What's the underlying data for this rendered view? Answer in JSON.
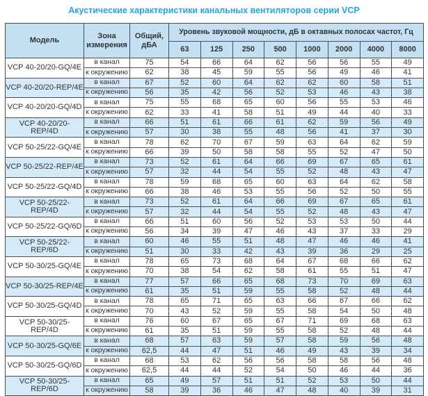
{
  "title": "Акустические характеристики канальных вентиляторов  серии VCP",
  "colors": {
    "title_text": "#2aa2db",
    "header_bg": "#c3e1f3",
    "highlight_row_bg": "#d4eaf8",
    "border": "#4d4d4d",
    "text": "#333333"
  },
  "table": {
    "headers": {
      "model": "Модель",
      "zone": "Зона измерения",
      "total": "Общий, дБА",
      "spl_group": "Уровень звуковой мощности, дБ в октавных полосах частот, Гц"
    },
    "frequencies": [
      "63",
      "125",
      "250",
      "500",
      "1000",
      "2000",
      "4000",
      "8000"
    ],
    "zone_labels": [
      "в канал",
      "к окружению"
    ],
    "models": [
      {
        "name": "VCP 40-20/20-GQ/4E",
        "highlight": false,
        "rows": [
          {
            "zone": "в канал",
            "total": "75",
            "levels": [
              "54",
              "66",
              "64",
              "62",
              "56",
              "56",
              "55",
              "49"
            ]
          },
          {
            "zone": "к окружению",
            "total": "62",
            "levels": [
              "38",
              "45",
              "59",
              "55",
              "56",
              "49",
              "46",
              "41"
            ]
          }
        ]
      },
      {
        "name": "VCP 40-20/20-REP/4E",
        "highlight": true,
        "rows": [
          {
            "zone": "в канал",
            "total": "67",
            "levels": [
              "52",
              "60",
              "64",
              "62",
              "62",
              "60",
              "58",
              "51"
            ]
          },
          {
            "zone": "к окружению",
            "total": "56",
            "levels": [
              "35",
              "42",
              "56",
              "52",
              "53",
              "46",
              "43",
              "38"
            ]
          }
        ]
      },
      {
        "name": "VCP 40-20/20-GQ/4D",
        "highlight": false,
        "rows": [
          {
            "zone": "в канал",
            "total": "75",
            "levels": [
              "55",
              "68",
              "65",
              "60",
              "56",
              "55",
              "53",
              "46"
            ]
          },
          {
            "zone": "к окружению",
            "total": "62",
            "levels": [
              "33",
              "41",
              "58",
              "51",
              "49",
              "44",
              "40",
              "33"
            ]
          }
        ]
      },
      {
        "name": "VCP 40-20/20-REP/4D",
        "highlight": true,
        "rows": [
          {
            "zone": "в канал",
            "total": "66",
            "levels": [
              "51",
              "61",
              "66",
              "61",
              "62",
              "59",
              "56",
              "49"
            ]
          },
          {
            "zone": "к окружению",
            "total": "57",
            "levels": [
              "30",
              "38",
              "55",
              "48",
              "56",
              "41",
              "37",
              "30"
            ]
          }
        ]
      },
      {
        "name": "VCP 50-25/22-GQ/4E",
        "highlight": false,
        "rows": [
          {
            "zone": "в канал",
            "total": "78",
            "levels": [
              "62",
              "70",
              "67",
              "59",
              "63",
              "64",
              "62",
              "59"
            ]
          },
          {
            "zone": "к окружению",
            "total": "66",
            "levels": [
              "39",
              "50",
              "58",
              "58",
              "55",
              "52",
              "47",
              "50"
            ]
          }
        ]
      },
      {
        "name": "VCP 50-25/22-REP/4E",
        "highlight": true,
        "rows": [
          {
            "zone": "в канал",
            "total": "73",
            "levels": [
              "52",
              "61",
              "64",
              "66",
              "69",
              "67",
              "65",
              "61"
            ]
          },
          {
            "zone": "к окружению",
            "total": "57",
            "levels": [
              "32",
              "44",
              "54",
              "55",
              "52",
              "48",
              "43",
              "47"
            ]
          }
        ]
      },
      {
        "name": "VCP 50-25/22-GQ/4D",
        "highlight": false,
        "rows": [
          {
            "zone": "в канал",
            "total": "78",
            "levels": [
              "59",
              "68",
              "65",
              "60",
              "63",
              "64",
              "62",
              "58"
            ]
          },
          {
            "zone": "к окружению",
            "total": "66",
            "levels": [
              "38",
              "46",
              "53",
              "55",
              "56",
              "52",
              "50",
              "55"
            ]
          }
        ]
      },
      {
        "name": "VCP 50-25/22-REP/4D",
        "highlight": true,
        "rows": [
          {
            "zone": "в канал",
            "total": "73",
            "levels": [
              "52",
              "61",
              "64",
              "66",
              "69",
              "67",
              "65",
              "61"
            ]
          },
          {
            "zone": "к окружению",
            "total": "57",
            "levels": [
              "32",
              "44",
              "54",
              "55",
              "52",
              "48",
              "43",
              "47"
            ]
          }
        ]
      },
      {
        "name": "VCP 50-25/22-GQ/6D",
        "highlight": false,
        "rows": [
          {
            "zone": "в канал",
            "total": "66",
            "levels": [
              "51",
              "60",
              "56",
              "52",
              "53",
              "53",
              "50",
              "44"
            ]
          },
          {
            "zone": "к окружению",
            "total": "56",
            "levels": [
              "34",
              "39",
              "47",
              "46",
              "43",
              "37",
              "33",
              "29"
            ]
          }
        ]
      },
      {
        "name": "VCP 50-25/22-REP/6D",
        "highlight": true,
        "rows": [
          {
            "zone": "в канал",
            "total": "60",
            "levels": [
              "46",
              "55",
              "51",
              "48",
              "47",
              "46",
              "46",
              "41"
            ]
          },
          {
            "zone": "к окружению",
            "total": "51",
            "levels": [
              "30",
              "33",
              "42",
              "43",
              "39",
              "36",
              "29",
              "25"
            ]
          }
        ]
      },
      {
        "name": "VCP 50-30/25-GQ/4E",
        "highlight": false,
        "rows": [
          {
            "zone": "в канал",
            "total": "78",
            "levels": [
              "65",
              "73",
              "68",
              "64",
              "67",
              "68",
              "66",
              "62"
            ]
          },
          {
            "zone": "к окружению",
            "total": "70",
            "levels": [
              "38",
              "54",
              "62",
              "58",
              "61",
              "55",
              "51",
              "47"
            ]
          }
        ]
      },
      {
        "name": "VCP 50-30/25-REP/4E",
        "highlight": true,
        "rows": [
          {
            "zone": "в канал",
            "total": "77",
            "levels": [
              "57",
              "66",
              "65",
              "68",
              "73",
              "70",
              "69",
              "63"
            ]
          },
          {
            "zone": "к окружению",
            "total": "61",
            "levels": [
              "35",
              "51",
              "59",
              "55",
              "58",
              "52",
              "48",
              "44"
            ]
          }
        ]
      },
      {
        "name": "VCP 50-30/25-GQ/4D",
        "highlight": false,
        "rows": [
          {
            "zone": "в канал",
            "total": "78",
            "levels": [
              "65",
              "71",
              "65",
              "63",
              "66",
              "67",
              "66",
              "62"
            ]
          },
          {
            "zone": "к окружению",
            "total": "70",
            "levels": [
              "43",
              "52",
              "59",
              "55",
              "58",
              "54",
              "50",
              "48"
            ]
          }
        ]
      },
      {
        "name": "VCP 50-30/25-REP/4D",
        "highlight": false,
        "rows": [
          {
            "zone": "в канал",
            "total": "76",
            "levels": [
              "60",
              "67",
              "65",
              "67",
              "71",
              "69",
              "68",
              "63"
            ]
          },
          {
            "zone": "к окружению",
            "total": "61",
            "levels": [
              "35",
              "51",
              "59",
              "55",
              "58",
              "52",
              "48",
              "44"
            ]
          }
        ]
      },
      {
        "name": "VCP 50-30/25-GQ/6E",
        "highlight": true,
        "rows": [
          {
            "zone": "в канал",
            "total": "68",
            "levels": [
              "57",
              "63",
              "59",
              "57",
              "58",
              "59",
              "56",
              "48"
            ]
          },
          {
            "zone": "к окружению",
            "total": "62,5",
            "levels": [
              "44",
              "47",
              "51",
              "46",
              "49",
              "43",
              "39",
              "34"
            ]
          }
        ]
      },
      {
        "name": "VCP 50-30/25-GQ/6D",
        "highlight": false,
        "rows": [
          {
            "zone": "в канал",
            "total": "68",
            "levels": [
              "53",
              "62",
              "56",
              "56",
              "58",
              "58",
              "56",
              "48"
            ]
          },
          {
            "zone": "к окружению",
            "total": "62,5",
            "levels": [
              "44",
              "44",
              "52",
              "54",
              "50",
              "46",
              "44",
              "36"
            ]
          }
        ]
      },
      {
        "name": "VCP 50-30/25-REP/6D",
        "highlight": true,
        "rows": [
          {
            "zone": "в канал",
            "total": "65",
            "levels": [
              "49",
              "57",
              "51",
              "51",
              "52",
              "53",
              "50",
              "44"
            ]
          },
          {
            "zone": "к окружению",
            "total": "58",
            "levels": [
              "39",
              "36",
              "46",
              "47",
              "48",
              "40",
              "39",
              "31"
            ]
          }
        ]
      }
    ]
  }
}
